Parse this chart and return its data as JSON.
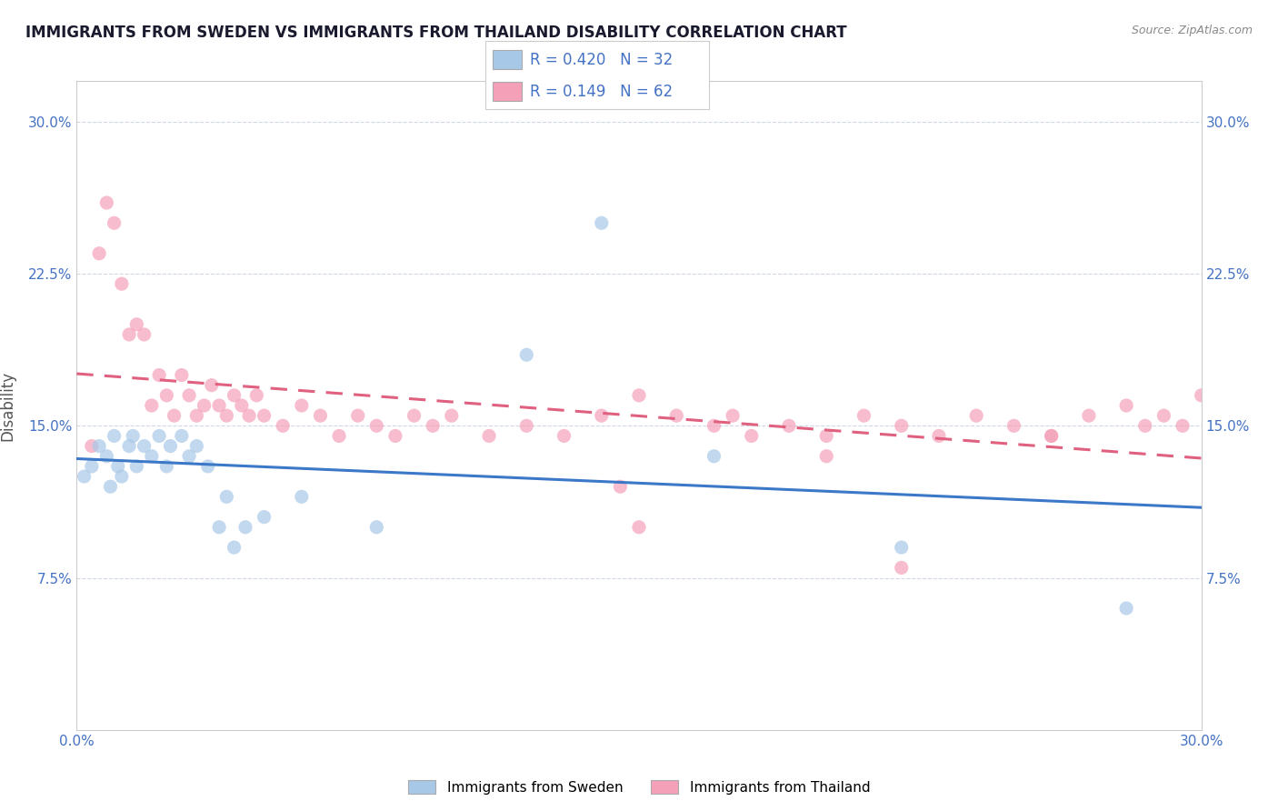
{
  "title": "IMMIGRANTS FROM SWEDEN VS IMMIGRANTS FROM THAILAND DISABILITY CORRELATION CHART",
  "source": "Source: ZipAtlas.com",
  "ylabel": "Disability",
  "xlim": [
    0.0,
    0.3
  ],
  "ylim": [
    0.0,
    0.32
  ],
  "x_ticks": [
    0.0,
    0.3
  ],
  "x_tick_labels": [
    "0.0%",
    "30.0%"
  ],
  "y_tick_labels": [
    "7.5%",
    "15.0%",
    "22.5%",
    "30.0%"
  ],
  "y_ticks": [
    0.075,
    0.15,
    0.225,
    0.3
  ],
  "sweden_color": "#a8c8e8",
  "thailand_color": "#f4a0b8",
  "sweden_line_color": "#3c78c8",
  "thailand_line_color": "#e06080",
  "R_sweden": 0.42,
  "N_sweden": 32,
  "R_thailand": 0.149,
  "N_thailand": 62,
  "sweden_scatter_x": [
    0.002,
    0.004,
    0.006,
    0.008,
    0.009,
    0.01,
    0.011,
    0.012,
    0.014,
    0.015,
    0.016,
    0.018,
    0.02,
    0.022,
    0.024,
    0.025,
    0.028,
    0.03,
    0.032,
    0.035,
    0.038,
    0.04,
    0.042,
    0.045,
    0.05,
    0.06,
    0.08,
    0.12,
    0.17,
    0.22,
    0.14,
    0.28
  ],
  "sweden_scatter_y": [
    0.125,
    0.13,
    0.14,
    0.135,
    0.12,
    0.145,
    0.13,
    0.125,
    0.14,
    0.145,
    0.13,
    0.14,
    0.135,
    0.145,
    0.13,
    0.14,
    0.145,
    0.135,
    0.14,
    0.13,
    0.1,
    0.115,
    0.09,
    0.1,
    0.105,
    0.115,
    0.1,
    0.185,
    0.135,
    0.09,
    0.25,
    0.06
  ],
  "thailand_scatter_x": [
    0.004,
    0.006,
    0.008,
    0.01,
    0.012,
    0.014,
    0.016,
    0.018,
    0.02,
    0.022,
    0.024,
    0.026,
    0.028,
    0.03,
    0.032,
    0.034,
    0.036,
    0.038,
    0.04,
    0.042,
    0.044,
    0.046,
    0.048,
    0.05,
    0.055,
    0.06,
    0.065,
    0.07,
    0.075,
    0.08,
    0.085,
    0.09,
    0.095,
    0.1,
    0.11,
    0.12,
    0.13,
    0.14,
    0.145,
    0.15,
    0.16,
    0.17,
    0.175,
    0.18,
    0.19,
    0.2,
    0.21,
    0.22,
    0.23,
    0.24,
    0.25,
    0.26,
    0.27,
    0.28,
    0.285,
    0.29,
    0.295,
    0.3,
    0.15,
    0.2,
    0.22,
    0.26
  ],
  "thailand_scatter_y": [
    0.14,
    0.235,
    0.26,
    0.25,
    0.22,
    0.195,
    0.2,
    0.195,
    0.16,
    0.175,
    0.165,
    0.155,
    0.175,
    0.165,
    0.155,
    0.16,
    0.17,
    0.16,
    0.155,
    0.165,
    0.16,
    0.155,
    0.165,
    0.155,
    0.15,
    0.16,
    0.155,
    0.145,
    0.155,
    0.15,
    0.145,
    0.155,
    0.15,
    0.155,
    0.145,
    0.15,
    0.145,
    0.155,
    0.12,
    0.165,
    0.155,
    0.15,
    0.155,
    0.145,
    0.15,
    0.145,
    0.155,
    0.15,
    0.145,
    0.155,
    0.15,
    0.145,
    0.155,
    0.16,
    0.15,
    0.155,
    0.15,
    0.165,
    0.1,
    0.135,
    0.08,
    0.145
  ],
  "background_color": "#ffffff",
  "grid_color": "#d0d8e8",
  "title_color": "#1a1a2e",
  "axis_label_color": "#555555",
  "tick_color": "#4472c4",
  "stat_text_color": "#4472c4"
}
